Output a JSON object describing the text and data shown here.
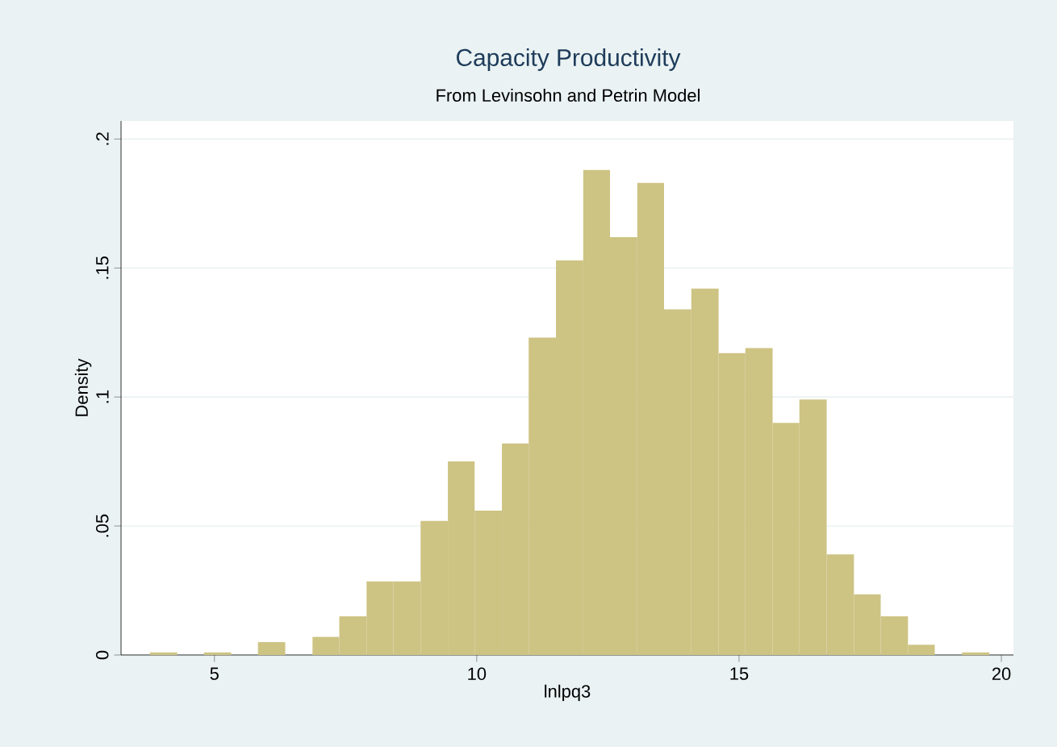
{
  "chart_data": {
    "type": "histogram",
    "title": "Capacity Productivity",
    "subtitle": "From Levinsohn and Petrin Model",
    "xlabel": "lnlpq3",
    "ylabel": "Density",
    "bins": [
      3.77,
      4.29,
      4.8,
      5.32,
      5.83,
      6.35,
      6.87,
      7.38,
      7.9,
      8.41,
      8.93,
      9.45,
      9.96,
      10.48,
      10.99,
      11.51,
      12.03,
      12.54,
      13.06,
      13.57,
      14.09,
      14.61,
      15.12,
      15.64,
      16.15,
      16.67,
      17.19,
      17.7,
      18.22,
      18.73,
      19.25,
      19.77
    ],
    "values": [
      0.001,
      0,
      0.001,
      0,
      0.005,
      0,
      0.007,
      0.015,
      0.0285,
      0.0285,
      0.052,
      0.075,
      0.056,
      0.082,
      0.123,
      0.153,
      0.188,
      0.162,
      0.183,
      0.134,
      0.142,
      0.117,
      0.119,
      0.09,
      0.099,
      0.039,
      0.0235,
      0.015,
      0.004,
      0,
      0.001
    ],
    "color": "#cdc383",
    "xlim": [
      3.22,
      20.23
    ],
    "ylim": [
      0,
      0.207
    ],
    "xticks": [
      5,
      10,
      15,
      20
    ],
    "yticks": [
      0,
      {
        "value": 0.05,
        "label": ".05"
      },
      {
        "value": 0.1,
        "label": ".1"
      },
      {
        "value": 0.15,
        "label": ".15"
      },
      {
        "value": 0.2,
        "label": ".2"
      }
    ],
    "grid": "y"
  }
}
